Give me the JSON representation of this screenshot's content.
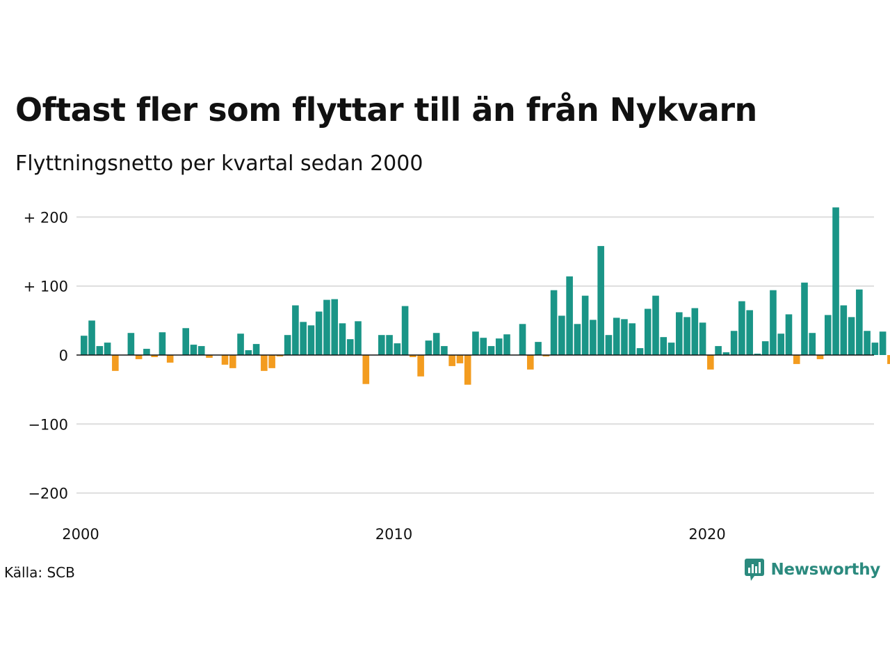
{
  "title": "Oftast fler som flyttar till än från Nykvarn",
  "subtitle": "Flyttningsnetto per kvartal sedan 2000",
  "source": "Källa: SCB",
  "logo": {
    "text": "Newsworthy",
    "icon": "newsworthy-chart-logo-icon",
    "color": "#2b8a7e"
  },
  "colors": {
    "positive": "#1a9587",
    "negative": "#f39c1f",
    "grid": "#dddddd",
    "zero_line": "#111111"
  },
  "chart_data": {
    "type": "bar",
    "title": "Oftast fler som flyttar till än från Nykvarn",
    "subtitle": "Flyttningsnetto per kvartal sedan 2000",
    "xlabel": "",
    "ylabel": "",
    "x_start_year": 2000,
    "periods_per_year": 4,
    "ylim": [
      -200,
      200
    ],
    "y_ticks": [
      200,
      100,
      0,
      -100,
      -200
    ],
    "y_tick_labels": [
      "+ 200",
      "+ 100",
      "0",
      "−100",
      "−200"
    ],
    "x_ticks": [
      2000,
      2010,
      2020
    ],
    "x_tick_labels": [
      "2000",
      "2010",
      "2020"
    ],
    "grid": true,
    "values": [
      28,
      50,
      13,
      18,
      -23,
      0,
      32,
      -6,
      9,
      -3,
      33,
      -11,
      0,
      39,
      15,
      13,
      -4,
      0,
      -14,
      -19,
      31,
      7,
      16,
      -23,
      -19,
      -2,
      29,
      72,
      48,
      43,
      63,
      80,
      81,
      46,
      23,
      49,
      -42,
      0,
      29,
      29,
      17,
      71,
      -3,
      -31,
      21,
      32,
      13,
      -16,
      -12,
      -43,
      34,
      25,
      13,
      24,
      30,
      0,
      45,
      -21,
      19,
      -2,
      94,
      57,
      114,
      45,
      86,
      51,
      158,
      29,
      54,
      52,
      46,
      10,
      67,
      86,
      26,
      18,
      62,
      55,
      68,
      47,
      -21,
      13,
      4,
      35,
      78,
      65,
      2,
      20,
      94,
      31,
      59,
      -13,
      105,
      32,
      -6,
      58,
      214,
      72,
      55,
      95,
      35,
      18,
      34,
      -13
    ]
  }
}
